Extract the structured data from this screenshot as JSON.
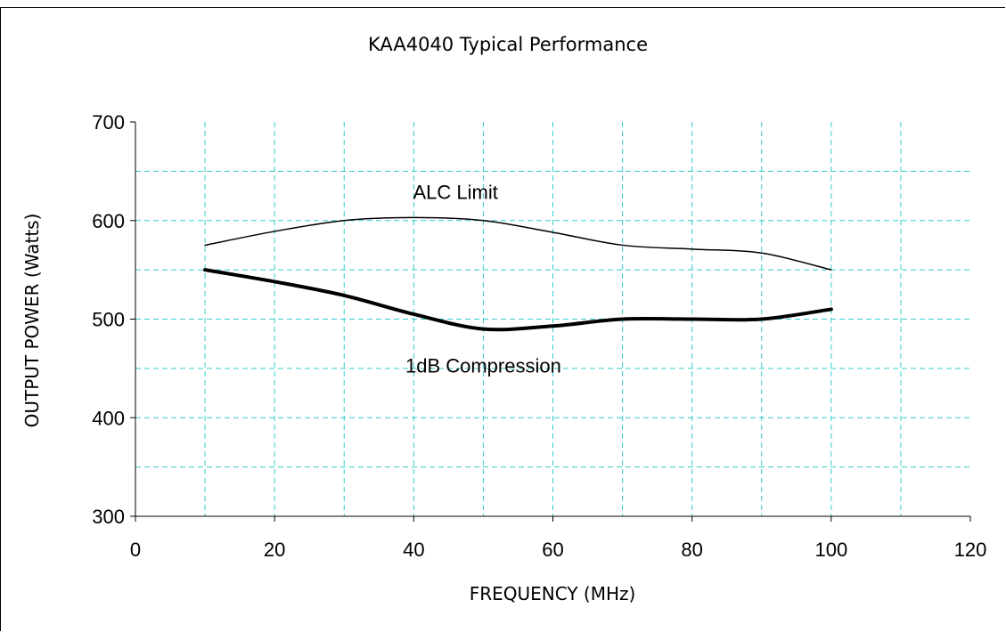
{
  "chart_data": {
    "type": "line",
    "title": "KAA4040  Typical Performance",
    "xlabel": "FREQUENCY (MHz)",
    "ylabel": "OUTPUT POWER (Watts)",
    "xlim": [
      0,
      120
    ],
    "ylim": [
      300,
      700
    ],
    "x_ticks": [
      0,
      20,
      40,
      60,
      80,
      100,
      120
    ],
    "y_ticks": [
      300,
      400,
      500,
      600,
      700
    ],
    "x_minor_grid_step": 10,
    "y_minor_grid_step": 50,
    "grid": true,
    "series": [
      {
        "name": "ALC Limit",
        "x": [
          10,
          20,
          30,
          40,
          50,
          60,
          70,
          80,
          90,
          100
        ],
        "y": [
          575,
          589,
          600,
          603,
          600,
          588,
          575,
          571,
          567,
          550
        ],
        "line_weight": "thin"
      },
      {
        "name": "1dB Compression",
        "x": [
          10,
          20,
          30,
          40,
          50,
          60,
          70,
          80,
          90,
          100
        ],
        "y": [
          550,
          538,
          524,
          505,
          490,
          493,
          500,
          500,
          500,
          510
        ],
        "line_weight": "thick"
      }
    ],
    "annotations": [
      {
        "text": "ALC Limit",
        "x": 46,
        "y": 622
      },
      {
        "text": "1dB Compression",
        "x": 50,
        "y": 446
      }
    ]
  }
}
